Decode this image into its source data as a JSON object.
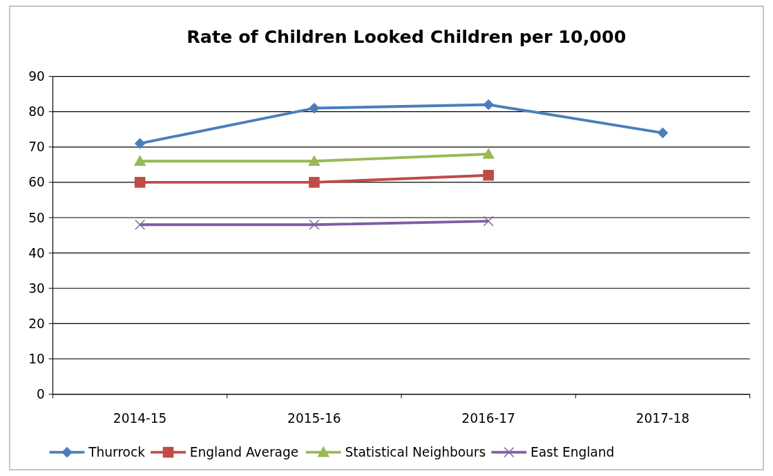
{
  "chart_data": {
    "type": "line",
    "title": "Rate of Children Looked Children per 10,000",
    "categories": [
      "2014-15",
      "2015-16",
      "2016-17",
      "2017-18"
    ],
    "series": [
      {
        "name": "Thurrock",
        "color": "#4a7ebb",
        "marker": "diamond",
        "values": [
          71,
          81,
          82,
          74
        ]
      },
      {
        "name": "England Average",
        "color": "#be4b48",
        "marker": "square",
        "values": [
          60,
          60,
          62,
          null
        ]
      },
      {
        "name": "Statistical Neighbours",
        "color": "#98b954",
        "marker": "triangle",
        "values": [
          66,
          66,
          68,
          null
        ]
      },
      {
        "name": "East England",
        "color": "#7d5fa0",
        "marker": "cross",
        "values": [
          48,
          48,
          49,
          null
        ]
      }
    ],
    "ylim": [
      0,
      90
    ],
    "yticks": [
      0,
      10,
      20,
      30,
      40,
      50,
      60,
      70,
      80,
      90
    ],
    "grid": "y",
    "legend": "bottom",
    "line_style": "solid"
  }
}
